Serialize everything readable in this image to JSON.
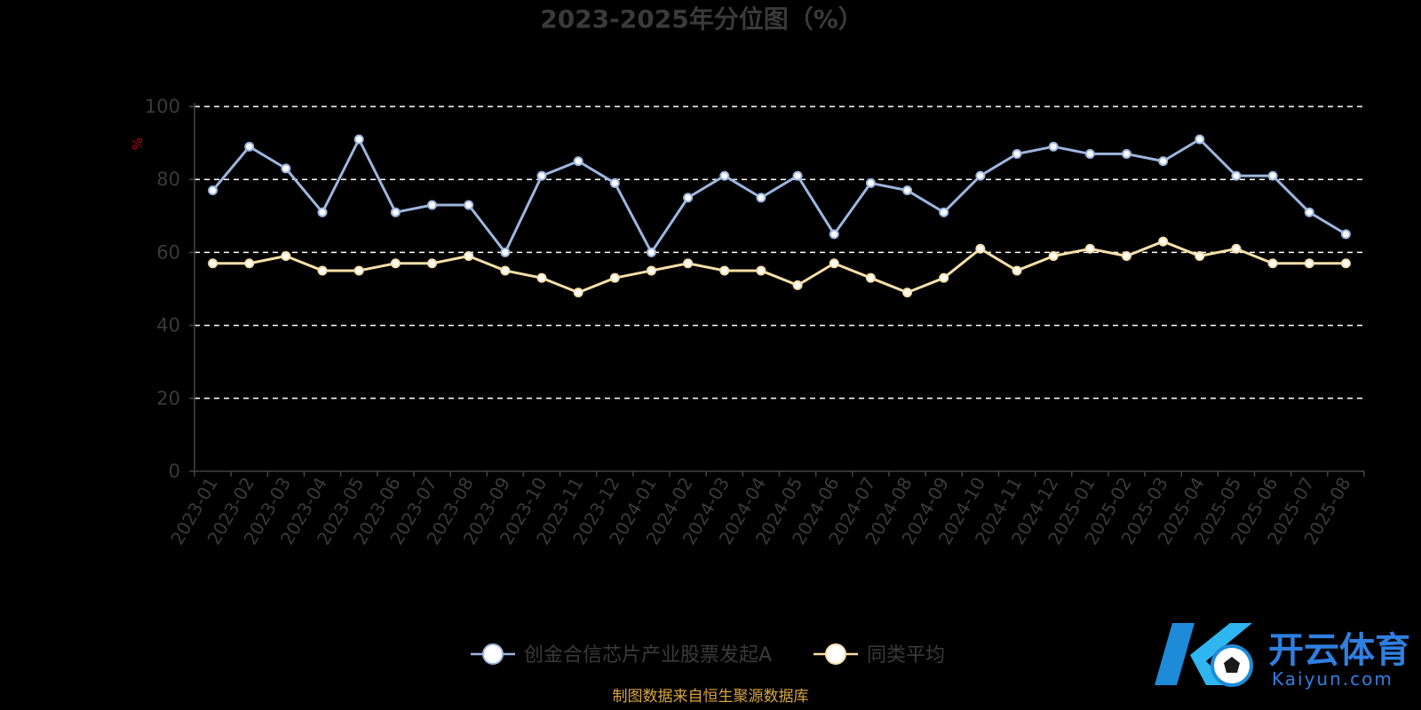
{
  "chart_data": {
    "type": "line",
    "title": "2023-2025年分位图（%）",
    "ylabel": "%",
    "xlabel": "",
    "ylim": [
      0,
      100
    ],
    "yticks": [
      0,
      20,
      40,
      60,
      80,
      100
    ],
    "grid": true,
    "legend_position": "bottom-center",
    "categories": [
      "2023-01",
      "2023-02",
      "2023-03",
      "2023-04",
      "2023-05",
      "2023-06",
      "2023-07",
      "2023-08",
      "2023-09",
      "2023-10",
      "2023-11",
      "2023-12",
      "2024-01",
      "2024-02",
      "2024-03",
      "2024-04",
      "2024-05",
      "2024-06",
      "2024-07",
      "2024-08",
      "2024-09",
      "2024-10",
      "2024-11",
      "2024-12",
      "2025-01",
      "2025-02",
      "2025-03",
      "2025-04",
      "2025-05",
      "2025-06",
      "2025-07",
      "2025-08"
    ],
    "series": [
      {
        "name": "创金合信芯片产业股票发起A",
        "color": "#9db6df",
        "values": [
          77,
          89,
          83,
          71,
          91,
          71,
          73,
          73,
          60,
          81,
          85,
          79,
          60,
          75,
          81,
          75,
          81,
          65,
          79,
          77,
          71,
          81,
          87,
          89,
          87,
          87,
          85,
          91,
          81,
          81,
          71,
          65
        ]
      },
      {
        "name": "同类平均",
        "color": "#f7dfa9",
        "values": [
          57,
          57,
          59,
          55,
          55,
          57,
          57,
          59,
          55,
          53,
          49,
          53,
          55,
          57,
          55,
          55,
          51,
          57,
          53,
          49,
          53,
          61,
          55,
          59,
          61,
          59,
          63,
          59,
          61,
          57,
          57,
          57
        ]
      }
    ]
  },
  "source_text": "制图数据来自恒生聚源数据库",
  "watermark": {
    "cn": "开云体育",
    "en": "Kaiyun.com"
  }
}
